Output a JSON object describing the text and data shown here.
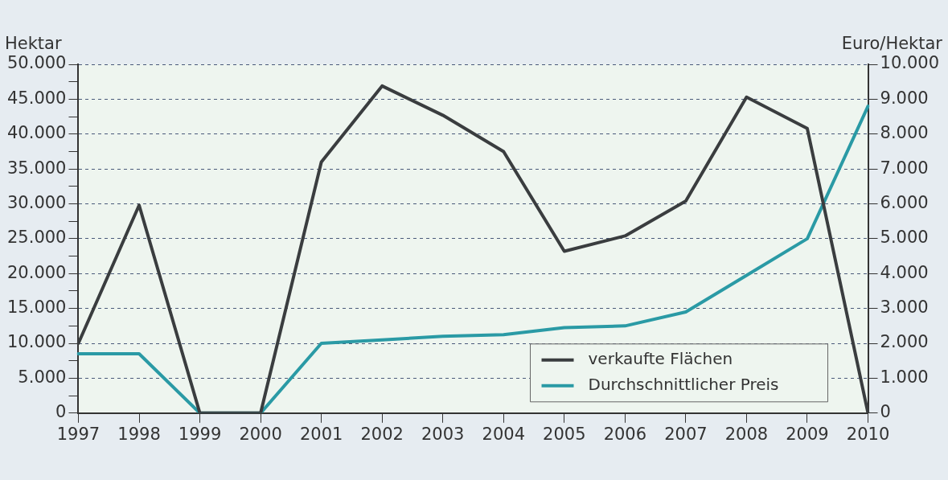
{
  "chart_data": {
    "type": "line",
    "ylabel": "Hektar",
    "y2label": "Euro/Hektar",
    "categories": [
      "1997",
      "1998",
      "1999",
      "2000",
      "2001",
      "2002",
      "2003",
      "2004",
      "2005",
      "2006",
      "2007",
      "2008",
      "2009",
      "2010"
    ],
    "series": [
      {
        "name": "verkaufte Flächen",
        "color": "#3a3d3f",
        "values": [
          10000,
          29800,
          0,
          0,
          36000,
          46900,
          42700,
          37500,
          23200,
          25400,
          30400,
          45300,
          40800,
          0
        ]
      },
      {
        "name": "Durchschnittlicher Preis",
        "color": "#2a9aa5",
        "axis": "y2",
        "values": [
          1700,
          1700,
          0,
          0,
          2000,
          2100,
          2200,
          2250,
          2450,
          2500,
          2900,
          3950,
          5000,
          8800
        ]
      }
    ],
    "ylim": [
      0,
      50000
    ],
    "yticks": [
      {
        "value": 0,
        "label": "0"
      },
      {
        "value": 2500,
        "label": null
      },
      {
        "value": 5000,
        "label": "5.000"
      },
      {
        "value": 7500,
        "label": null
      },
      {
        "value": 10000,
        "label": "10.000"
      },
      {
        "value": 12500,
        "label": null
      },
      {
        "value": 15000,
        "label": "15.000"
      },
      {
        "value": 17500,
        "label": null
      },
      {
        "value": 20000,
        "label": "20.000"
      },
      {
        "value": 22500,
        "label": null
      },
      {
        "value": 25000,
        "label": "25.000"
      },
      {
        "value": 27500,
        "label": null
      },
      {
        "value": 30000,
        "label": "30.000"
      },
      {
        "value": 32500,
        "label": null
      },
      {
        "value": 35000,
        "label": "35.000"
      },
      {
        "value": 37500,
        "label": null
      },
      {
        "value": 40000,
        "label": "40.000"
      },
      {
        "value": 42500,
        "label": null
      },
      {
        "value": 45000,
        "label": "45.000"
      },
      {
        "value": 47500,
        "label": null
      },
      {
        "value": 50000,
        "label": "50.000"
      }
    ],
    "y2lim": [
      0,
      10000
    ],
    "y2ticks": [
      {
        "value": 0,
        "label": "0"
      },
      {
        "value": 1000,
        "label": "1.000"
      },
      {
        "value": 2000,
        "label": "2.000"
      },
      {
        "value": 3000,
        "label": "3.000"
      },
      {
        "value": 4000,
        "label": "4.000"
      },
      {
        "value": 5000,
        "label": "5.000"
      },
      {
        "value": 6000,
        "label": "6.000"
      },
      {
        "value": 7000,
        "label": "7.000"
      },
      {
        "value": 8000,
        "label": "8.000"
      },
      {
        "value": 9000,
        "label": "9.000"
      },
      {
        "value": 10000,
        "label": "10.000"
      }
    ],
    "grid": "y",
    "legend": "bottom right",
    "marker": "none",
    "line_style": "solid"
  }
}
